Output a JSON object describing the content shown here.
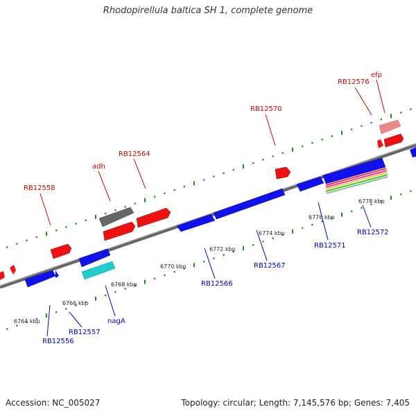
{
  "title": "Rhodopirellula baltica SH 1, complete genome",
  "footer": {
    "accession": "Accession: NC_005027",
    "summary": "Topology: circular; Length: 7,145,576 bp; Genes: 7,405"
  },
  "colors": {
    "forward_gene": "#ee1111",
    "reverse_gene": "#1111ee",
    "forward_label": "#cc0000",
    "reverse_label": "#0000bb",
    "backbone": "#888888",
    "tick": "#228822",
    "gray_gene": "#666666",
    "cyan_gene": "#22cccc",
    "pink_gene": "#ee8888"
  },
  "kbp_labels": [
    "6764 kbp",
    "6766 kbp",
    "6768 kbp",
    "6770 kbp",
    "6772 kbp",
    "6774 kbp",
    "6776 kbp",
    "6778 kbp"
  ],
  "forward_labels": [
    "RB12558",
    "adh",
    "RB12564",
    "RB12570",
    "RB12576",
    "efp"
  ],
  "reverse_labels": [
    "RB12556",
    "RB12557",
    "nagA",
    "RB12566",
    "RB12567",
    "RB12571",
    "RB12572"
  ]
}
